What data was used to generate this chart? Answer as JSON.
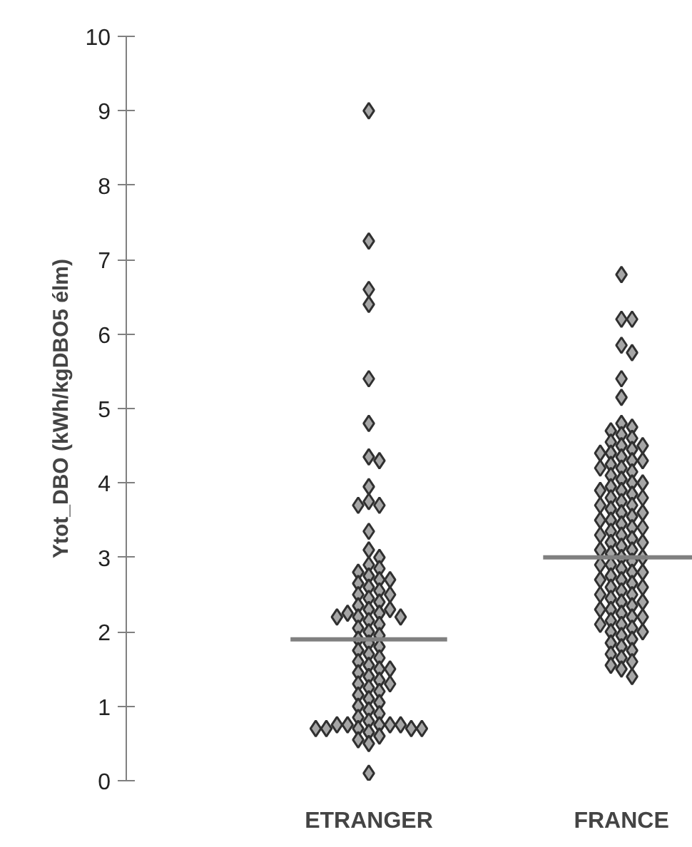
{
  "chart_data": {
    "type": "scatter",
    "ylabel": "Ytot_DBO (kWh/kgDBO5 élm)",
    "categories": [
      "ETRANGER",
      "FRANCE"
    ],
    "ylim": [
      0,
      10
    ],
    "yticks": [
      0,
      1,
      2,
      3,
      4,
      5,
      6,
      7,
      8,
      9,
      10
    ],
    "marker": "diamond",
    "grid": false,
    "series": [
      {
        "color": "#a6a6a6",
        "x": [
          "ETRANGER",
          "ETRANGER",
          "ETRANGER",
          "ETRANGER",
          "ETRANGER",
          "ETRANGER",
          "ETRANGER",
          "ETRANGER",
          "ETRANGER",
          "ETRANGER",
          "ETRANGER",
          "ETRANGER",
          "ETRANGER",
          "ETRANGER",
          "ETRANGER",
          "ETRANGER",
          "ETRANGER",
          "ETRANGER",
          "ETRANGER",
          "ETRANGER",
          "ETRANGER",
          "ETRANGER",
          "ETRANGER",
          "ETRANGER",
          "ETRANGER",
          "ETRANGER",
          "ETRANGER",
          "ETRANGER",
          "ETRANGER",
          "ETRANGER",
          "ETRANGER",
          "ETRANGER",
          "ETRANGER",
          "ETRANGER",
          "ETRANGER",
          "ETRANGER",
          "ETRANGER",
          "ETRANGER",
          "ETRANGER",
          "ETRANGER",
          "ETRANGER",
          "ETRANGER",
          "ETRANGER",
          "ETRANGER",
          "ETRANGER",
          "ETRANGER",
          "ETRANGER",
          "ETRANGER",
          "ETRANGER",
          "ETRANGER",
          "ETRANGER",
          "ETRANGER",
          "ETRANGER",
          "ETRANGER",
          "ETRANGER",
          "ETRANGER",
          "ETRANGER",
          "ETRANGER",
          "ETRANGER",
          "ETRANGER",
          "ETRANGER",
          "ETRANGER",
          "ETRANGER",
          "ETRANGER",
          "ETRANGER",
          "ETRANGER",
          "ETRANGER",
          "ETRANGER",
          "ETRANGER",
          "ETRANGER",
          "ETRANGER",
          "ETRANGER",
          "ETRANGER",
          "ETRANGER",
          "ETRANGER",
          "ETRANGER",
          "ETRANGER",
          "ETRANGER",
          "ETRANGER",
          "ETRANGER",
          "ETRANGER"
        ],
        "values": [
          9.0,
          7.25,
          6.6,
          6.4,
          5.4,
          4.8,
          4.35,
          4.3,
          3.95,
          3.75,
          3.7,
          3.7,
          3.35,
          3.1,
          3.0,
          2.9,
          2.85,
          2.8,
          2.75,
          2.7,
          2.7,
          2.65,
          2.6,
          2.55,
          2.5,
          2.5,
          2.45,
          2.4,
          2.35,
          2.3,
          2.3,
          2.25,
          2.25,
          2.2,
          2.2,
          2.2,
          2.15,
          2.1,
          2.05,
          2.0,
          1.95,
          1.9,
          1.85,
          1.8,
          1.75,
          1.7,
          1.65,
          1.6,
          1.55,
          1.5,
          1.5,
          1.45,
          1.4,
          1.35,
          1.3,
          1.3,
          1.25,
          1.2,
          1.15,
          1.1,
          1.05,
          1.0,
          0.95,
          0.9,
          0.85,
          0.8,
          0.75,
          0.75,
          0.75,
          0.75,
          0.75,
          0.7,
          0.7,
          0.7,
          0.7,
          0.7,
          0.65,
          0.6,
          0.55,
          0.5,
          0.1
        ]
      },
      {
        "color": "#a6a6a6",
        "x": [
          "FRANCE",
          "FRANCE",
          "FRANCE",
          "FRANCE",
          "FRANCE",
          "FRANCE",
          "FRANCE",
          "FRANCE",
          "FRANCE",
          "FRANCE",
          "FRANCE",
          "FRANCE",
          "FRANCE",
          "FRANCE",
          "FRANCE",
          "FRANCE",
          "FRANCE",
          "FRANCE",
          "FRANCE",
          "FRANCE",
          "FRANCE",
          "FRANCE",
          "FRANCE",
          "FRANCE",
          "FRANCE",
          "FRANCE",
          "FRANCE",
          "FRANCE",
          "FRANCE",
          "FRANCE",
          "FRANCE",
          "FRANCE",
          "FRANCE",
          "FRANCE",
          "FRANCE",
          "FRANCE",
          "FRANCE",
          "FRANCE",
          "FRANCE",
          "FRANCE",
          "FRANCE",
          "FRANCE",
          "FRANCE",
          "FRANCE",
          "FRANCE",
          "FRANCE",
          "FRANCE",
          "FRANCE",
          "FRANCE",
          "FRANCE",
          "FRANCE",
          "FRANCE",
          "FRANCE",
          "FRANCE",
          "FRANCE",
          "FRANCE",
          "FRANCE",
          "FRANCE",
          "FRANCE",
          "FRANCE",
          "FRANCE",
          "FRANCE",
          "FRANCE",
          "FRANCE",
          "FRANCE",
          "FRANCE",
          "FRANCE",
          "FRANCE",
          "FRANCE",
          "FRANCE",
          "FRANCE",
          "FRANCE",
          "FRANCE",
          "FRANCE",
          "FRANCE",
          "FRANCE",
          "FRANCE",
          "FRANCE",
          "FRANCE",
          "FRANCE",
          "FRANCE",
          "FRANCE",
          "FRANCE",
          "FRANCE",
          "FRANCE",
          "FRANCE",
          "FRANCE",
          "FRANCE",
          "FRANCE",
          "FRANCE",
          "FRANCE",
          "FRANCE",
          "FRANCE",
          "FRANCE",
          "FRANCE",
          "FRANCE",
          "FRANCE",
          "FRANCE",
          "FRANCE",
          "FRANCE"
        ],
        "values": [
          6.8,
          6.2,
          6.2,
          5.85,
          5.75,
          5.4,
          5.15,
          4.8,
          4.75,
          4.7,
          4.65,
          4.6,
          4.55,
          4.5,
          4.5,
          4.45,
          4.4,
          4.4,
          4.35,
          4.3,
          4.3,
          4.25,
          4.2,
          4.2,
          4.15,
          4.1,
          4.05,
          4.0,
          4.0,
          3.95,
          3.9,
          3.9,
          3.85,
          3.8,
          3.8,
          3.75,
          3.7,
          3.7,
          3.65,
          3.6,
          3.6,
          3.55,
          3.5,
          3.5,
          3.45,
          3.4,
          3.4,
          3.35,
          3.3,
          3.3,
          3.25,
          3.2,
          3.2,
          3.15,
          3.1,
          3.1,
          3.05,
          3.0,
          3.0,
          2.95,
          2.9,
          2.9,
          2.85,
          2.8,
          2.8,
          2.75,
          2.7,
          2.7,
          2.65,
          2.6,
          2.6,
          2.55,
          2.5,
          2.5,
          2.45,
          2.4,
          2.4,
          2.35,
          2.3,
          2.3,
          2.25,
          2.2,
          2.2,
          2.15,
          2.1,
          2.1,
          2.05,
          2.0,
          2.0,
          1.95,
          1.9,
          1.85,
          1.8,
          1.75,
          1.7,
          1.65,
          1.6,
          1.55,
          1.5,
          1.4
        ]
      },
      {
        "type": "box",
        "color": "#808080",
        "boxes": [
          {
            "low": 1.9,
            "q1": 1.9,
            "median": 1.9,
            "q3": 1.9,
            "high": 1.9
          },
          {
            "low": 3.0,
            "q1": 3.0,
            "median": 3.0,
            "q3": 3.0,
            "high": 3.0
          }
        ]
      }
    ]
  }
}
